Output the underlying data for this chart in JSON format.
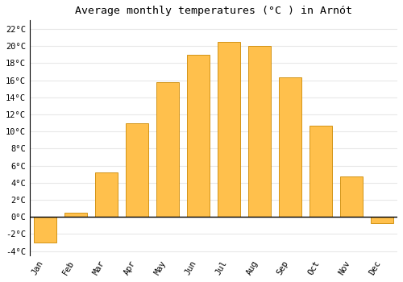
{
  "months": [
    "Jan",
    "Feb",
    "Mar",
    "Apr",
    "May",
    "Jun",
    "Jul",
    "Aug",
    "Sep",
    "Oct",
    "Nov",
    "Dec"
  ],
  "values": [
    -3.0,
    0.5,
    5.2,
    11.0,
    15.8,
    19.0,
    20.5,
    20.0,
    16.3,
    10.7,
    4.7,
    -0.7
  ],
  "bar_color": "#FFC04C",
  "bar_edge_color": "#CC8800",
  "title": "Average monthly temperatures (°C ) in Arnót",
  "title_fontsize": 9.5,
  "tick_fontsize": 7.5,
  "ylim": [
    -4.5,
    23.0
  ],
  "yticks": [
    -4,
    -2,
    0,
    2,
    4,
    6,
    8,
    10,
    12,
    14,
    16,
    18,
    20,
    22
  ],
  "background_color": "#ffffff",
  "grid_color": "#e8e8e8",
  "zero_line_color": "#000000"
}
